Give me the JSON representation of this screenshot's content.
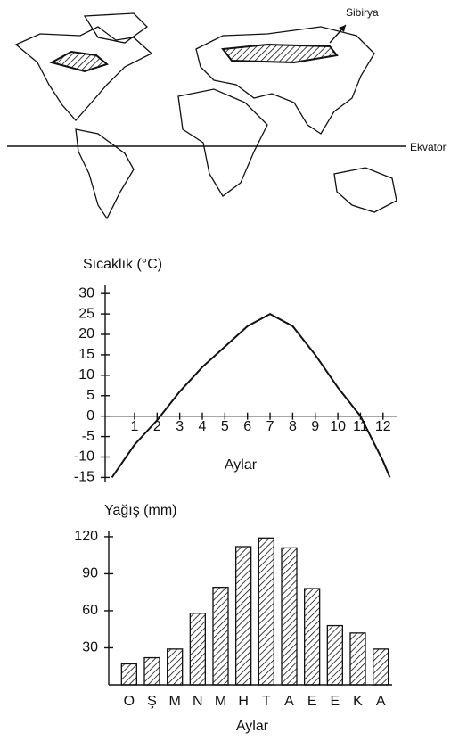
{
  "map": {
    "north_label": "Sibirya",
    "equator_label": "Ekvator"
  },
  "chart_data": [
    {
      "type": "line",
      "title": "Sıcaklık (°C)",
      "x_label": "Aylar",
      "x": [
        0,
        1,
        2,
        3,
        4,
        5,
        6,
        7,
        8,
        9,
        10,
        11,
        12,
        12.3
      ],
      "values": [
        -15,
        -7,
        -1,
        6,
        12,
        17,
        22,
        25,
        22,
        15,
        7,
        0,
        -11,
        -15
      ],
      "color": "#111111",
      "xlim": [
        -0.3,
        12.6
      ],
      "xticks": [
        1,
        2,
        3,
        4,
        5,
        6,
        7,
        8,
        9,
        10,
        11,
        12
      ],
      "ylim": [
        -16,
        32
      ],
      "yticks": [
        30,
        25,
        20,
        15,
        10,
        5,
        0,
        -5,
        -10,
        -15
      ]
    },
    {
      "type": "bar",
      "title": "Yağış (mm)",
      "x_label": "Aylar",
      "categories": [
        "O",
        "Ş",
        "M",
        "N",
        "M",
        "H",
        "T",
        "A",
        "E",
        "E",
        "K",
        "A"
      ],
      "values": [
        17,
        22,
        29,
        58,
        79,
        112,
        119,
        111,
        78,
        48,
        42,
        29
      ],
      "color": "#111111",
      "ylim": [
        0,
        125
      ],
      "yticks": [
        30,
        60,
        90,
        120
      ]
    }
  ]
}
